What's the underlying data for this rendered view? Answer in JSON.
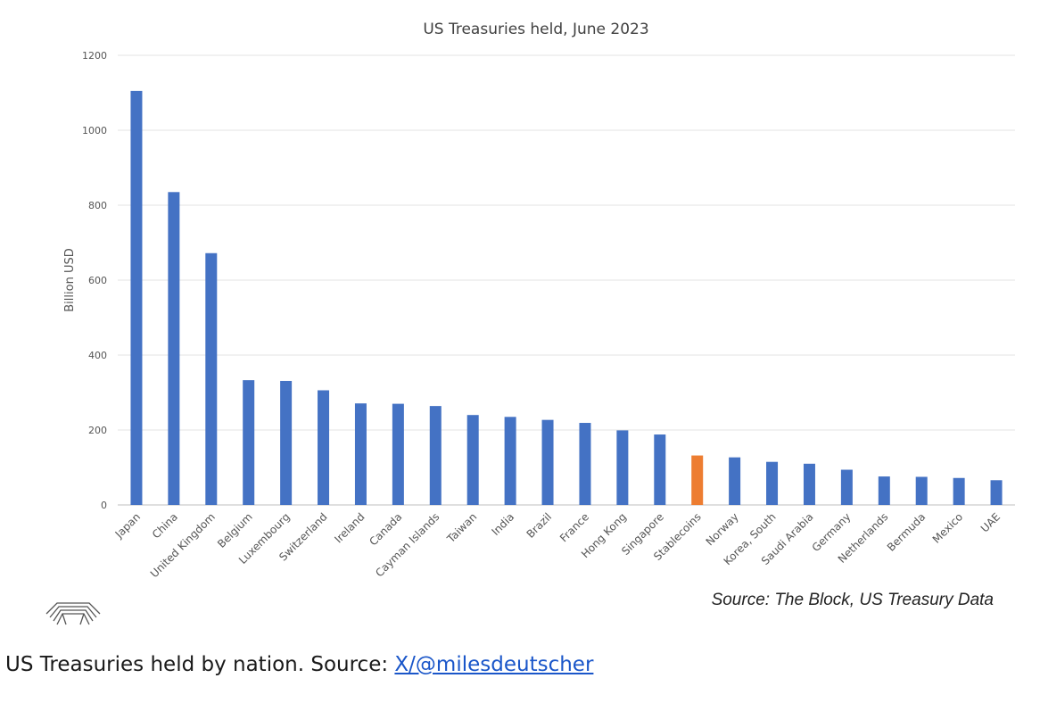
{
  "chart_data": {
    "type": "bar",
    "title": "US Treasuries held, June 2023",
    "ylabel": "Billion USD",
    "xlabel": "",
    "ylim": [
      0,
      1200
    ],
    "yticks": [
      0,
      200,
      400,
      600,
      800,
      1000,
      1200
    ],
    "grid": true,
    "categories": [
      "Japan",
      "China",
      "United Kingdom",
      "Belgium",
      "Luxembourg",
      "Switzerland",
      "Ireland",
      "Canada",
      "Cayman Islands",
      "Taiwan",
      "India",
      "Brazil",
      "France",
      "Hong Kong",
      "Singapore",
      "Stablecoins",
      "Norway",
      "Korea, South",
      "Saudi Arabia",
      "Germany",
      "Netherlands",
      "Bermuda",
      "Mexico",
      "UAE"
    ],
    "values": [
      1105,
      835,
      672,
      333,
      331,
      306,
      271,
      270,
      264,
      240,
      235,
      227,
      219,
      199,
      188,
      132,
      127,
      115,
      110,
      94,
      76,
      75,
      72,
      66
    ],
    "colors": {
      "default": "#4472c4",
      "highlight": "#ed7d31"
    },
    "highlight_category": "Stablecoins",
    "source_note": "Source: The Block, US Treasury Data"
  },
  "logo": {
    "icon": "arch-logo-icon"
  },
  "caption": {
    "text": "US Treasuries held by nation. Source: ",
    "link_text": "X/@milesdeutscher"
  }
}
